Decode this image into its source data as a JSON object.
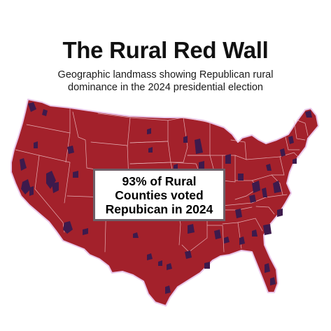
{
  "title": "The Rural Red Wall",
  "subtitle": {
    "line1": "Geographic landmass showing Republican rural",
    "line2": "dominance in the 2024 presidential election"
  },
  "callout": {
    "line1": "93% of Rural",
    "line2": "Counties voted",
    "line3": "Repubican in 2024"
  },
  "colors": {
    "republican": "#a3212b",
    "democrat": "#3d1a4c",
    "state_border": "#f0c8cc",
    "halo": "#e9c7ea"
  }
}
